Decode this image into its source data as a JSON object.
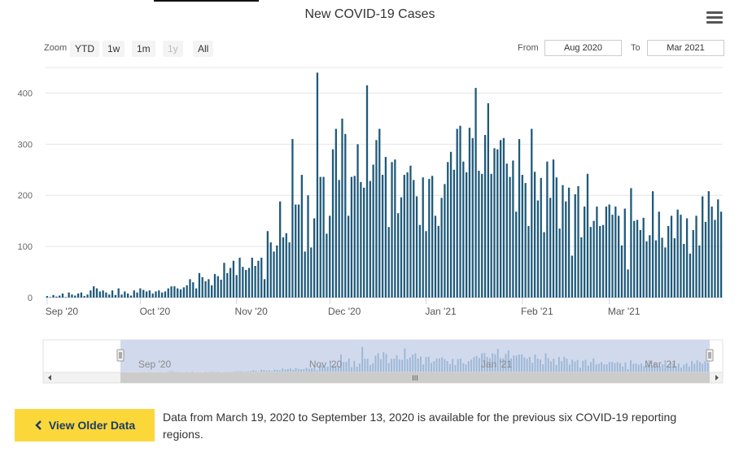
{
  "header": {
    "title": "New COVID-19 Cases"
  },
  "toolbar": {
    "zoom_label": "Zoom",
    "zoom_buttons": [
      "YTD",
      "1w",
      "1m",
      "1y",
      "All"
    ],
    "from_label": "From",
    "to_label": "To",
    "from_value": "Aug 2020",
    "to_value": "Mar 2021"
  },
  "navigator": {
    "labels": [
      "Sep '20",
      "Nov '20",
      "Jan '21",
      "Mar '21"
    ],
    "scroll_grip": "III"
  },
  "footer": {
    "button_label": "View Older Data",
    "note": "Data from March 19, 2020 to September 13, 2020 is available for the previous six COVID-19 reporting regions."
  },
  "colors": {
    "bar": "#1f5a7a",
    "navigator_fill": "#ccd6eb",
    "navigator_bar": "#9fb8d6",
    "accent": "#fcd73a"
  },
  "chart_data": {
    "type": "bar",
    "title": "New COVID-19 Cases",
    "xlabel": "",
    "ylabel": "",
    "ylim": [
      0,
      450
    ],
    "yticks": [
      0,
      100,
      200,
      300,
      400
    ],
    "ytick_labels": [
      "0",
      "100",
      "200",
      "300",
      "400"
    ],
    "xtick_labels": [
      "Sep '20",
      "Oct '20",
      "Nov '20",
      "Dec '20",
      "Jan '21",
      "Feb '21",
      "Mar '21"
    ],
    "xtick_days": [
      0,
      30,
      61,
      91,
      122,
      153,
      181
    ],
    "start_date": "2020-09-01",
    "values": [
      3,
      1,
      5,
      2,
      4,
      8,
      1,
      10,
      6,
      4,
      8,
      10,
      3,
      6,
      14,
      22,
      18,
      12,
      14,
      10,
      6,
      14,
      5,
      18,
      6,
      12,
      8,
      4,
      14,
      10,
      18,
      15,
      12,
      14,
      8,
      12,
      14,
      10,
      12,
      18,
      22,
      22,
      18,
      16,
      20,
      24,
      36,
      30,
      18,
      48,
      40,
      32,
      36,
      24,
      46,
      42,
      35,
      68,
      48,
      58,
      72,
      44,
      78,
      60,
      54,
      58,
      78,
      62,
      72,
      78,
      36,
      130,
      108,
      90,
      102,
      188,
      118,
      126,
      108,
      310,
      182,
      182,
      240,
      90,
      200,
      98,
      155,
      440,
      236,
      236,
      125,
      160,
      290,
      330,
      230,
      350,
      320,
      160,
      236,
      238,
      300,
      226,
      215,
      415,
      228,
      260,
      308,
      330,
      240,
      275,
      138,
      265,
      270,
      165,
      196,
      240,
      245,
      258,
      230,
      198,
      142,
      235,
      130,
      232,
      238,
      160,
      140,
      195,
      222,
      265,
      285,
      250,
      330,
      336,
      266,
      245,
      332,
      312,
      410,
      248,
      242,
      318,
      380,
      242,
      292,
      290,
      308,
      312,
      262,
      236,
      268,
      168,
      310,
      240,
      224,
      140,
      330,
      246,
      190,
      234,
      128,
      266,
      195,
      270,
      235,
      135,
      220,
      188,
      215,
      82,
      202,
      218,
      118,
      178,
      242,
      138,
      150,
      178,
      140,
      142,
      178,
      182,
      162,
      178,
      160,
      102,
      174,
      55,
      214,
      150,
      152,
      132,
      156,
      110,
      122,
      208,
      112,
      168,
      117,
      98,
      140,
      160,
      116,
      172,
      162,
      105,
      155,
      86,
      132,
      160,
      102,
      198,
      148,
      208,
      178,
      152,
      192,
      168
    ],
    "navigator_values": [
      3,
      1,
      5,
      2,
      4,
      8,
      1,
      10,
      6,
      4,
      8,
      10,
      3,
      6,
      14,
      22,
      18,
      12,
      14,
      10,
      6,
      14,
      5,
      18,
      6,
      12,
      8,
      4,
      14,
      10,
      18,
      15,
      12,
      14,
      8,
      12,
      14,
      10,
      12,
      18,
      22,
      22,
      18,
      16,
      20,
      24,
      36,
      30,
      18,
      48,
      40,
      32,
      36,
      24,
      46,
      42,
      35,
      68,
      48,
      58,
      72,
      44,
      78,
      60,
      54,
      58,
      78,
      62,
      72,
      78,
      36,
      130,
      108,
      90,
      102,
      188,
      118,
      126,
      108,
      310,
      182,
      182,
      240,
      90,
      200,
      98,
      155,
      440,
      236,
      236,
      125,
      160,
      290,
      330,
      230,
      350,
      320,
      160,
      236,
      238,
      300,
      226,
      215,
      415,
      228,
      260,
      308,
      330,
      240,
      275,
      138,
      265,
      270,
      165,
      196,
      240,
      245,
      258,
      230,
      198,
      142,
      235,
      130,
      232,
      238,
      160,
      140,
      195,
      222,
      265,
      285,
      250,
      330,
      336,
      266,
      245,
      332,
      312,
      410,
      248,
      242,
      318,
      380,
      242,
      292,
      290,
      308,
      312,
      262,
      236,
      268,
      168,
      310,
      240,
      224,
      140,
      330,
      246,
      190,
      234,
      128,
      266,
      195,
      270,
      235,
      135,
      220,
      188,
      215,
      82,
      202,
      218,
      118,
      178,
      242,
      138,
      150,
      178,
      140,
      142,
      178,
      182,
      162,
      178,
      160,
      102,
      174,
      55,
      214,
      150,
      152,
      132,
      156,
      110,
      122,
      208,
      112,
      168,
      117,
      98,
      140,
      160,
      116,
      172,
      162,
      105,
      155,
      86,
      132,
      160,
      102,
      198,
      148,
      208,
      178,
      152,
      192,
      168
    ]
  }
}
